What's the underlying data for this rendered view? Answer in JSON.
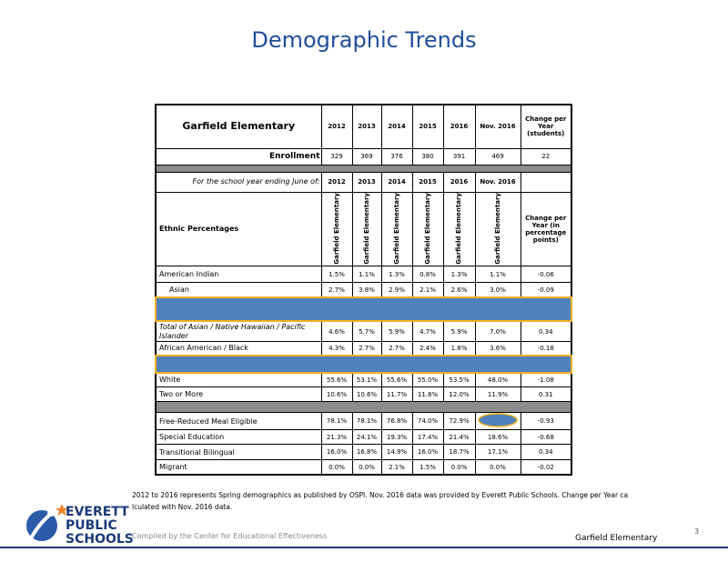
{
  "title": "Demographic Trends",
  "table": {
    "school": "Garfield Elementary",
    "years": [
      "2012",
      "2013",
      "2014",
      "2015",
      "2016",
      "Nov. 2016"
    ],
    "change_students": "Change per Year (students)",
    "enrollment": {
      "label": "Enrollment",
      "values": [
        "329",
        "369",
        "376",
        "380",
        "391",
        "469"
      ],
      "change": "22"
    },
    "year_row_label": "For the school year ending June of:",
    "ethnic_header": "Ethnic Percentages",
    "column_label": "Garfield Elementary",
    "change_points": "Change per Year (in percentage points)",
    "ethnic_rows": [
      {
        "label": "American Indian",
        "values": [
          "1.5%",
          "1.1%",
          "1.3%",
          "0.8%",
          "1.3%",
          "1.1%"
        ],
        "change": "-0.06"
      },
      {
        "label": "Asian",
        "values": [
          "2.7%",
          "3.8%",
          "2.9%",
          "2.1%",
          "2.6%",
          "3.0%"
        ],
        "change": "-0.09"
      },
      {
        "label": "Total of Asian / Native Hawaiian / Pacific Islander",
        "values": [
          "4.6%",
          "5.7%",
          "5.9%",
          "4.7%",
          "5.9%",
          "7.0%"
        ],
        "change": "0.34"
      },
      {
        "label": "African American / Black",
        "values": [
          "4.3%",
          "2.7%",
          "2.7%",
          "2.4%",
          "1.8%",
          "3.6%"
        ],
        "change": "-0.18"
      },
      {
        "label": "White",
        "values": [
          "55.6%",
          "53.1%",
          "55.6%",
          "55.0%",
          "53.5%",
          "48.0%"
        ],
        "change": "-1.08"
      },
      {
        "label": "Two or More",
        "values": [
          "10.6%",
          "10.6%",
          "11.7%",
          "11.8%",
          "12.0%",
          "11.9%"
        ],
        "change": "0.31"
      }
    ],
    "program_rows": [
      {
        "label": "Free-Reduced Meal Eligible",
        "values": [
          "78.1%",
          "78.1%",
          "76.8%",
          "74.0%",
          "72.9%",
          null
        ],
        "change": "-0.93"
      },
      {
        "label": "Special Education",
        "values": [
          "21.3%",
          "24.1%",
          "19.3%",
          "17.4%",
          "21.4%",
          "18.6%"
        ],
        "change": "-0.68"
      },
      {
        "label": "Transitional Bilingual",
        "values": [
          "16.0%",
          "16.8%",
          "14.9%",
          "16.0%",
          "18.7%",
          "17.1%"
        ],
        "change": "0.34"
      },
      {
        "label": "Migrant",
        "values": [
          "0.0%",
          "0.0%",
          "2.1%",
          "1.5%",
          "0.0%",
          "0.0%"
        ],
        "change": "-0.02"
      }
    ]
  },
  "footnote": [
    "2012 to 2016 represents Spring demographics as published by OSPI. Nov. 2016 data was provided by Everett Public Schools. Change per Year ca",
    "lculated with Nov. 2016 data."
  ],
  "credit": "Compiled by the Center for Educational Effectiveness",
  "footer_school": "Garfield Elementary",
  "page": "3",
  "logo": [
    "EVERETT",
    "PUBLIC",
    "SCHOOLS"
  ]
}
